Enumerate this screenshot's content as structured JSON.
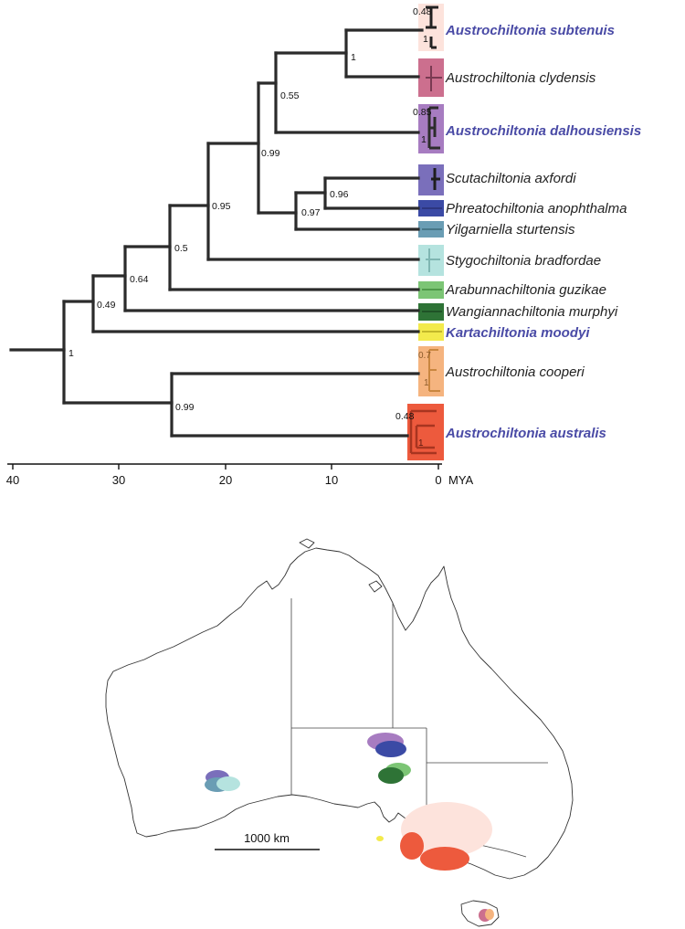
{
  "phylogeny": {
    "taxa": [
      {
        "id": "subtenuis",
        "label": "Austrochiltonia subtenuis",
        "highlight": true,
        "color": "#fde3dc"
      },
      {
        "id": "clydensis",
        "label": "Austrochiltonia clydensis",
        "highlight": false,
        "color": "#cc6f8e"
      },
      {
        "id": "dalhousiensis",
        "label": "Austrochiltonia dalhousiensis",
        "highlight": true,
        "color": "#a77cc1"
      },
      {
        "id": "axfordi",
        "label": "Scutachiltonia axfordi",
        "highlight": false,
        "color": "#7a6fbb"
      },
      {
        "id": "anophthalma",
        "label": "Phreatochiltonia anophthalma",
        "highlight": false,
        "color": "#3b4aa5"
      },
      {
        "id": "sturtensis",
        "label": "Yilgarniella sturtensis",
        "highlight": false,
        "color": "#6a9db4"
      },
      {
        "id": "bradfordae",
        "label": "Stygochiltonia bradfordae",
        "highlight": false,
        "color": "#b5e3df"
      },
      {
        "id": "guzikae",
        "label": "Arabunnachiltonia guzikae",
        "highlight": false,
        "color": "#7cc575"
      },
      {
        "id": "murphyi",
        "label": "Wangiannachiltonia murphyi",
        "highlight": false,
        "color": "#2e7336"
      },
      {
        "id": "moodyi",
        "label": "Kartachiltonia moodyi",
        "highlight": true,
        "color": "#f3ea4c"
      },
      {
        "id": "cooperi",
        "label": "Austrochiltonia cooperi",
        "highlight": false,
        "color": "#f5b47f"
      },
      {
        "id": "australis",
        "label": "Austrochiltonia australis",
        "highlight": true,
        "color": "#ed5a3d"
      }
    ],
    "support_values": [
      "0.48",
      "1",
      "1",
      "0.55",
      "0.85",
      "1",
      "0.99",
      "0.96",
      "0.97",
      "0.95",
      "0.5",
      "0.64",
      "0.49",
      "1",
      "0.7",
      "1",
      "0.99",
      "0.48",
      "1"
    ],
    "axis": {
      "ticks": [
        "40",
        "30",
        "20",
        "10",
        "0"
      ],
      "unit": "MYA"
    }
  },
  "map": {
    "scale_label": "1000 km"
  }
}
